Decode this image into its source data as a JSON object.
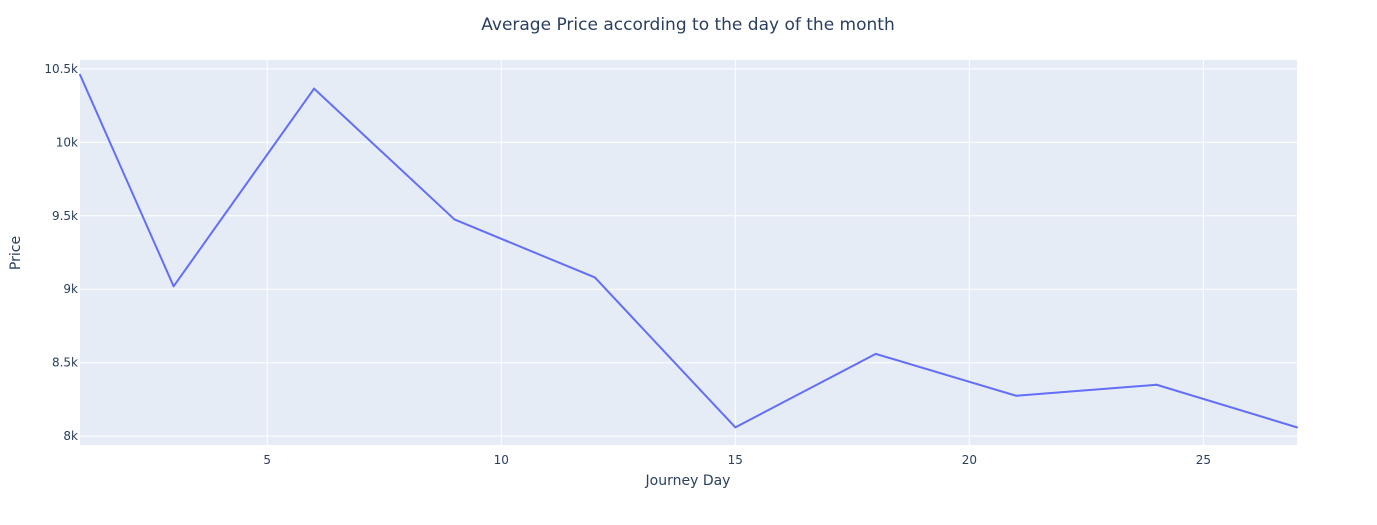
{
  "chart_data": {
    "type": "line",
    "title": "Average Price according to the day of the month",
    "xlabel": "Journey Day",
    "ylabel": "Price",
    "x": [
      1,
      3,
      6,
      9,
      12,
      15,
      18,
      21,
      24,
      27
    ],
    "series": [
      {
        "values": [
          10460,
          9020,
          10365,
          9475,
          9080,
          8060,
          8560,
          8275,
          8350,
          8060
        ],
        "color": "#636efa"
      }
    ],
    "xlim": [
      1,
      27
    ],
    "ylim": [
      7940,
      10560
    ],
    "xticks": [
      {
        "value": 5,
        "label": "5"
      },
      {
        "value": 10,
        "label": "10"
      },
      {
        "value": 15,
        "label": "15"
      },
      {
        "value": 20,
        "label": "20"
      },
      {
        "value": 25,
        "label": "25"
      }
    ],
    "yticks": [
      {
        "value": 8000,
        "label": "8k"
      },
      {
        "value": 8500,
        "label": "8.5k"
      },
      {
        "value": 9000,
        "label": "9k"
      },
      {
        "value": 9500,
        "label": "9.5k"
      },
      {
        "value": 10000,
        "label": "10k"
      },
      {
        "value": 10500,
        "label": "10.5k"
      }
    ],
    "grid": true,
    "legend": "none",
    "plot_background": "#e5ecf6",
    "grid_color": "#ffffff",
    "text_color": "#2a3f5f"
  }
}
